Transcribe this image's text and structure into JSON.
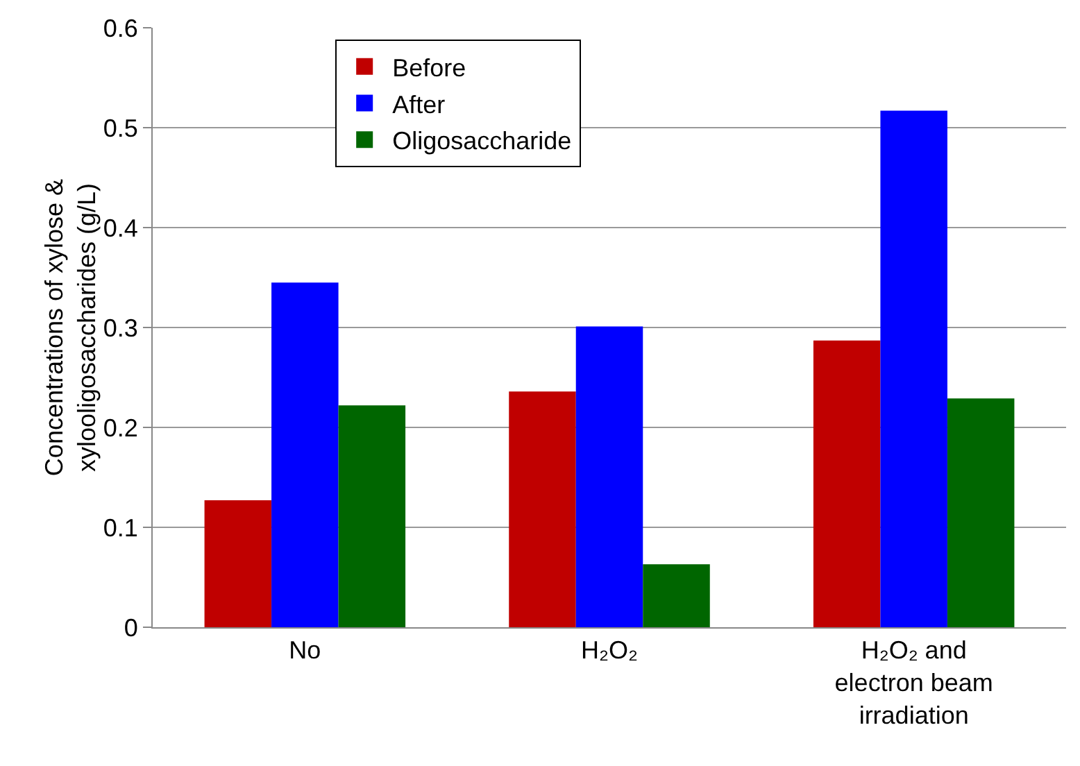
{
  "chart_data": {
    "type": "bar",
    "ylabel": "Concentrations of xylose & xylooligosaccharides (g/L)",
    "categories": [
      "No",
      "H₂O₂",
      "H₂O₂ and electron beam irradiation"
    ],
    "series": [
      {
        "name": "Before",
        "color": "#c00000",
        "values": [
          0.127,
          0.236,
          0.287
        ]
      },
      {
        "name": "After",
        "color": "#0000ff",
        "values": [
          0.345,
          0.301,
          0.517
        ]
      },
      {
        "name": "Oligosaccharide",
        "color": "#006600",
        "values": [
          0.222,
          0.063,
          0.229
        ]
      }
    ],
    "ylim": [
      0,
      0.6
    ],
    "yticks": [
      0,
      0.1,
      0.2,
      0.3,
      0.4,
      0.5,
      0.6
    ],
    "grid": "y",
    "legend": "top"
  }
}
